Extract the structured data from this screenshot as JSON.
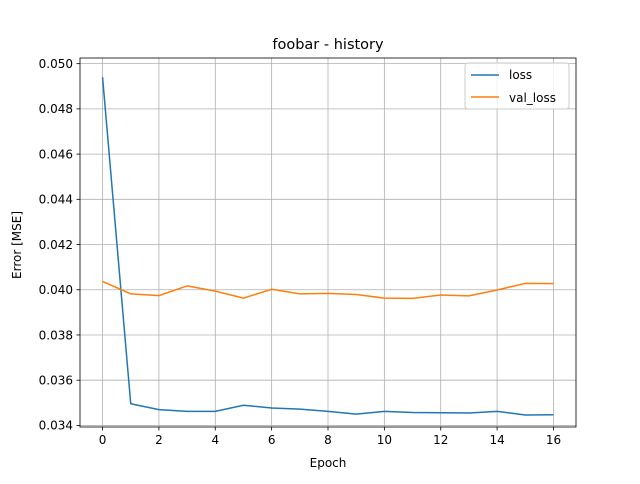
{
  "chart_data": {
    "type": "line",
    "title": "foobar - history",
    "xlabel": "Epoch",
    "ylabel": "Error [MSE]",
    "xlim": [
      -0.8,
      16.8
    ],
    "ylim": [
      0.03393,
      0.05025
    ],
    "xticks": [
      0,
      2,
      4,
      6,
      8,
      10,
      12,
      14,
      16
    ],
    "xtick_labels": [
      "0",
      "2",
      "4",
      "6",
      "8",
      "10",
      "12",
      "14",
      "16"
    ],
    "yticks": [
      0.034,
      0.036,
      0.038,
      0.04,
      0.042,
      0.044,
      0.046,
      0.048,
      0.05
    ],
    "ytick_labels": [
      "0.034",
      "0.036",
      "0.038",
      "0.040",
      "0.042",
      "0.044",
      "0.046",
      "0.048",
      "0.050"
    ],
    "grid": true,
    "legend_position": "top-right",
    "x": [
      0,
      1,
      2,
      3,
      4,
      5,
      6,
      7,
      8,
      9,
      10,
      11,
      12,
      13,
      14,
      15,
      16
    ],
    "series": [
      {
        "name": "loss",
        "color": "#1f77b4",
        "values": [
          0.0494,
          0.03496,
          0.0347,
          0.03462,
          0.03462,
          0.03489,
          0.03477,
          0.03472,
          0.03462,
          0.0345,
          0.03462,
          0.03457,
          0.03456,
          0.03455,
          0.03462,
          0.03446,
          0.03447
        ]
      },
      {
        "name": "val_loss",
        "color": "#ff7f0e",
        "values": [
          0.04037,
          0.03982,
          0.03974,
          0.04017,
          0.03994,
          0.03963,
          0.04002,
          0.03982,
          0.03984,
          0.03979,
          0.03963,
          0.03962,
          0.03977,
          0.03973,
          0.03999,
          0.04028,
          0.04027
        ]
      }
    ]
  }
}
